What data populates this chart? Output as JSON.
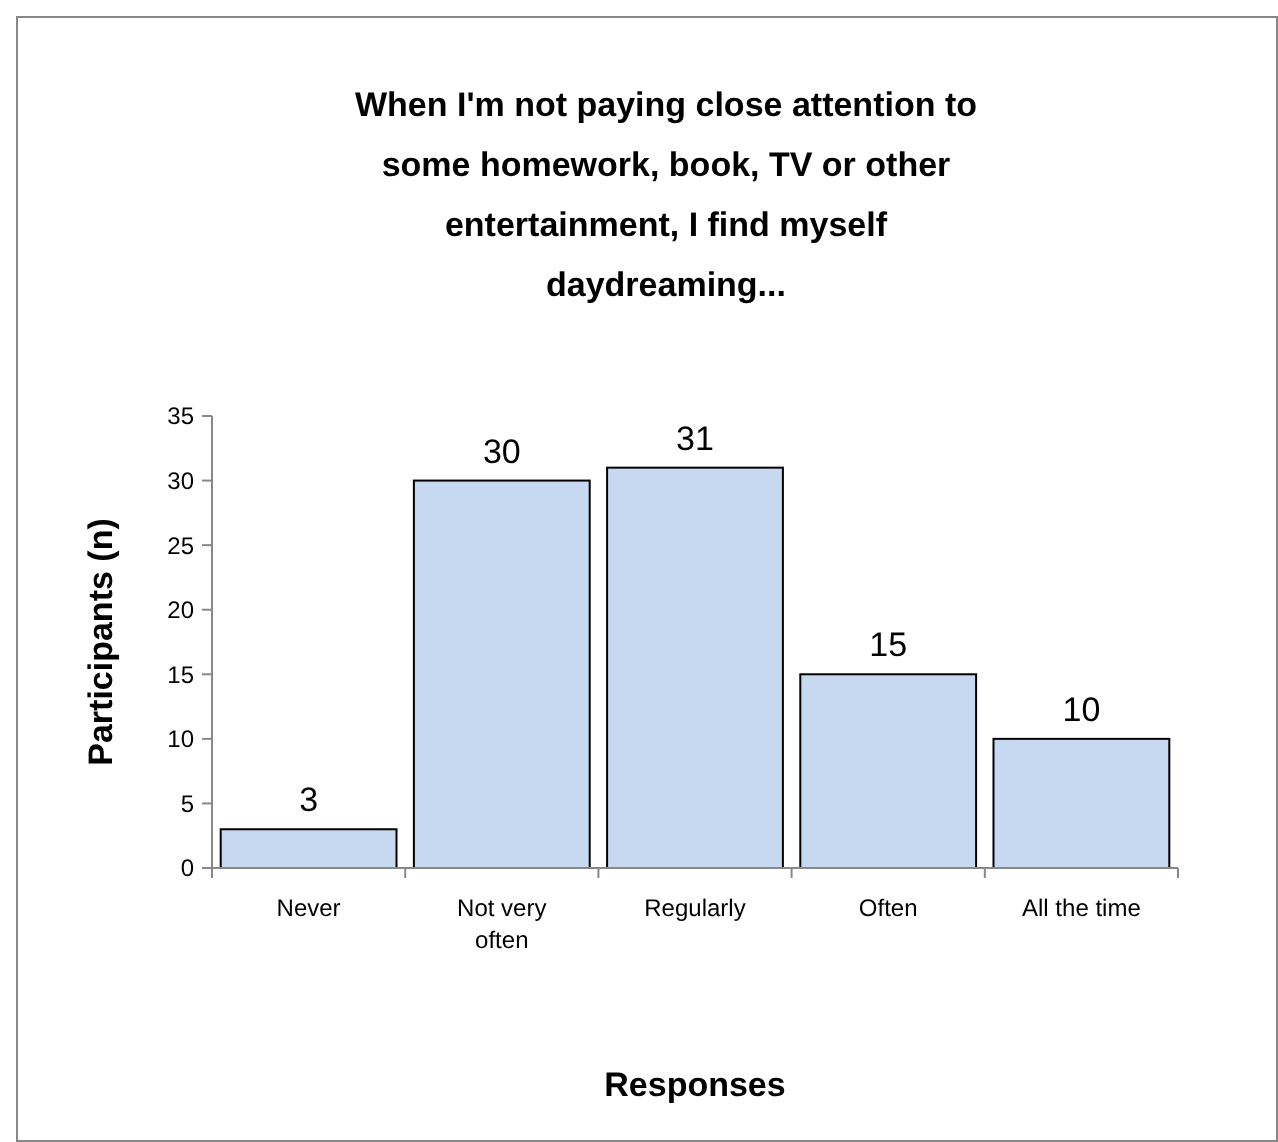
{
  "chart_data": {
    "type": "bar",
    "title": "When I'm not paying close attention to some homework, book, TV or other entertainment, I find myself daydreaming...",
    "xlabel": "Responses",
    "ylabel": "Participants (n)",
    "categories": [
      "Never",
      "Not very often",
      "Regularly",
      "Often",
      "All the time"
    ],
    "values": [
      3,
      30,
      31,
      15,
      10
    ],
    "color": "#c6d9f1",
    "ylim": [
      0,
      35
    ],
    "yticks": [
      0,
      5,
      10,
      15,
      20,
      25,
      30,
      35
    ],
    "grid": false,
    "data_labels": true
  }
}
